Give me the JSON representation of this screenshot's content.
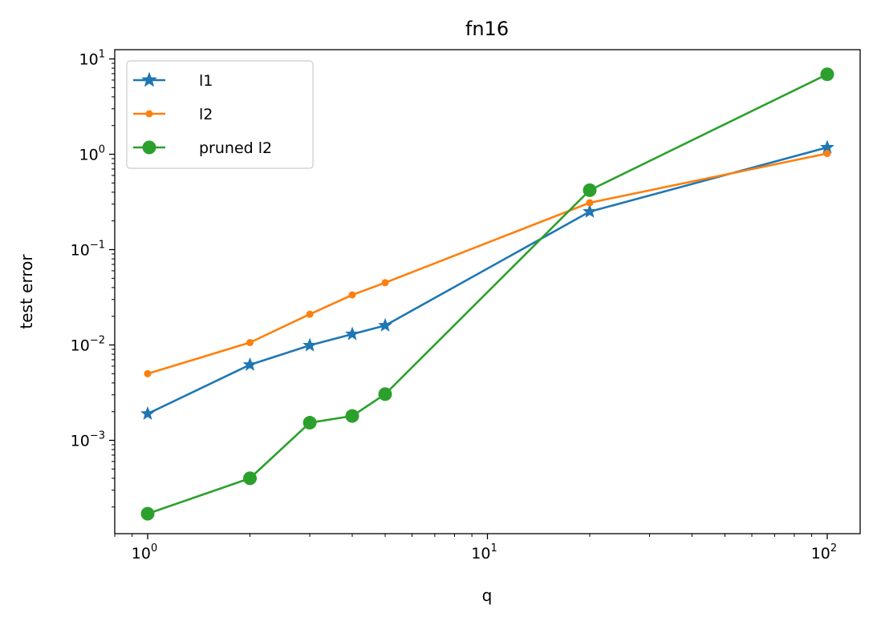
{
  "chart_data": {
    "type": "line",
    "title": "fn16",
    "xlabel": "q",
    "ylabel": "test error",
    "xscale": "log",
    "yscale": "log",
    "xlim": [
      0.8,
      125
    ],
    "ylim": [
      0.000105,
      12.5
    ],
    "x_ticks": [
      {
        "base": "10",
        "exp": "0",
        "value": 1
      },
      {
        "base": "10",
        "exp": "1",
        "value": 10
      },
      {
        "base": "10",
        "exp": "2",
        "value": 100
      }
    ],
    "y_ticks": [
      {
        "base": "10",
        "exp": "−3",
        "value": 0.001
      },
      {
        "base": "10",
        "exp": "−2",
        "value": 0.01
      },
      {
        "base": "10",
        "exp": "−1",
        "value": 0.1
      },
      {
        "base": "10",
        "exp": "0",
        "value": 1
      },
      {
        "base": "10",
        "exp": "1",
        "value": 10
      }
    ],
    "grid": false,
    "legend_position": "top-left",
    "series": [
      {
        "name": "l1",
        "color": "#1f77b4",
        "marker": "star",
        "x": [
          1,
          2,
          3,
          4,
          5,
          20,
          100
        ],
        "y": [
          0.0019,
          0.0062,
          0.0099,
          0.013,
          0.016,
          0.25,
          1.18
        ]
      },
      {
        "name": "l2",
        "color": "#ff7f0e",
        "marker": "small-circle",
        "x": [
          1,
          2,
          3,
          4,
          5,
          20,
          100
        ],
        "y": [
          0.005,
          0.0106,
          0.021,
          0.0335,
          0.045,
          0.31,
          1.02
        ]
      },
      {
        "name": "pruned l2",
        "color": "#2ca02c",
        "marker": "circle",
        "x": [
          1,
          2,
          3,
          4,
          5,
          20,
          100
        ],
        "y": [
          0.00017,
          0.0004,
          0.00153,
          0.0018,
          0.00305,
          0.42,
          6.9
        ]
      }
    ]
  }
}
